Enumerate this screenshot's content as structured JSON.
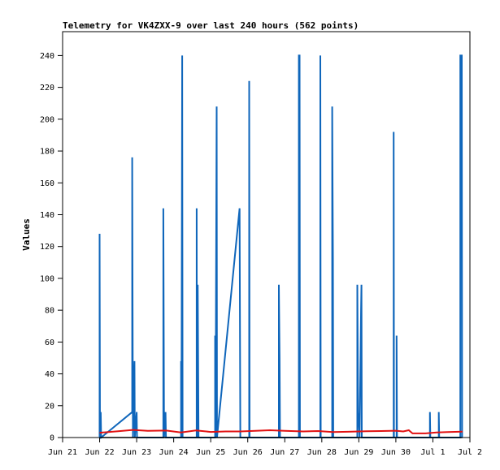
{
  "chart_data": {
    "type": "line",
    "title": "Telemetry for VK4ZXX-9 over last 240 hours (562 points)",
    "ylabel": "Values",
    "xlabel": "",
    "x_ticks": [
      "Jun 21",
      "Jun 22",
      "Jun 23",
      "Jun 24",
      "Jun 25",
      "Jun 26",
      "Jun 27",
      "Jun 28",
      "Jun 29",
      "Jun 30",
      "Jul 1",
      "Jul 2"
    ],
    "xlim": [
      0,
      11
    ],
    "y_ticks": [
      0,
      20,
      40,
      60,
      80,
      100,
      120,
      140,
      160,
      180,
      200,
      220,
      240
    ],
    "ylim": [
      0,
      255
    ],
    "grid": false,
    "legend": "none",
    "series": [
      {
        "color": "#0f66bb",
        "points": [
          [
            1.0,
            0
          ],
          [
            1.0,
            128
          ],
          [
            1.01,
            0
          ],
          [
            1.03,
            16
          ],
          [
            1.04,
            0
          ],
          [
            1.88,
            16
          ],
          [
            1.88,
            176
          ],
          [
            1.9,
            0
          ],
          [
            1.93,
            36
          ],
          [
            1.94,
            48
          ],
          [
            1.95,
            0
          ],
          [
            2.0,
            16
          ],
          [
            2.01,
            0
          ],
          [
            2.72,
            0
          ],
          [
            2.72,
            144
          ],
          [
            2.74,
            0
          ],
          [
            2.78,
            16
          ],
          [
            2.79,
            0
          ],
          [
            3.2,
            0
          ],
          [
            3.2,
            48
          ],
          [
            3.21,
            0
          ],
          [
            3.23,
            240
          ],
          [
            3.24,
            0
          ],
          [
            3.62,
            0
          ],
          [
            3.62,
            144
          ],
          [
            3.63,
            0
          ],
          [
            3.65,
            96
          ],
          [
            3.66,
            48
          ],
          [
            3.67,
            0
          ],
          [
            4.12,
            0
          ],
          [
            4.12,
            64
          ],
          [
            4.13,
            0
          ],
          [
            4.16,
            208
          ],
          [
            4.17,
            0
          ],
          [
            4.78,
            144
          ],
          [
            4.8,
            0
          ],
          [
            5.04,
            0
          ],
          [
            5.04,
            224
          ],
          [
            5.05,
            0
          ],
          [
            5.84,
            0
          ],
          [
            5.84,
            96
          ],
          [
            5.86,
            48
          ],
          [
            5.87,
            0
          ],
          [
            6.38,
            0
          ],
          [
            6.38,
            240
          ],
          [
            6.4,
            240
          ],
          [
            6.41,
            0
          ],
          [
            6.96,
            0
          ],
          [
            6.96,
            240
          ],
          [
            6.97,
            0
          ],
          [
            7.28,
            0
          ],
          [
            7.28,
            208
          ],
          [
            7.3,
            112
          ],
          [
            7.31,
            0
          ],
          [
            7.96,
            0
          ],
          [
            7.96,
            96
          ],
          [
            7.98,
            16
          ],
          [
            8.02,
            0
          ],
          [
            8.06,
            80
          ],
          [
            8.07,
            96
          ],
          [
            8.08,
            0
          ],
          [
            8.94,
            0
          ],
          [
            8.94,
            192
          ],
          [
            8.95,
            0
          ],
          [
            9.02,
            0
          ],
          [
            9.02,
            64
          ],
          [
            9.03,
            0
          ],
          [
            9.92,
            0
          ],
          [
            9.92,
            16
          ],
          [
            9.93,
            0
          ],
          [
            10.16,
            0
          ],
          [
            10.16,
            16
          ],
          [
            10.17,
            0
          ],
          [
            10.74,
            0
          ],
          [
            10.74,
            240
          ],
          [
            10.78,
            240
          ],
          [
            10.79,
            0
          ]
        ]
      },
      {
        "color": "#e11111",
        "points": [
          [
            1.0,
            3
          ],
          [
            1.5,
            4
          ],
          [
            1.9,
            4.8
          ],
          [
            2.3,
            4.2
          ],
          [
            2.8,
            4.4
          ],
          [
            3.2,
            3.2
          ],
          [
            3.6,
            4.5
          ],
          [
            4.0,
            3.5
          ],
          [
            4.4,
            3.8
          ],
          [
            4.8,
            3.8
          ],
          [
            5.2,
            4.2
          ],
          [
            5.6,
            4.6
          ],
          [
            6.0,
            4.2
          ],
          [
            6.5,
            3.8
          ],
          [
            6.9,
            4.1
          ],
          [
            7.3,
            3.4
          ],
          [
            7.7,
            3.6
          ],
          [
            8.2,
            4.0
          ],
          [
            8.6,
            4.1
          ],
          [
            9.0,
            4.3
          ],
          [
            9.2,
            3.8
          ],
          [
            9.35,
            4.6
          ],
          [
            9.45,
            2.6
          ],
          [
            9.8,
            2.6
          ],
          [
            10.1,
            3.2
          ],
          [
            10.4,
            3.4
          ],
          [
            10.8,
            3.7
          ]
        ]
      },
      {
        "color": "#000000",
        "points": [
          [
            1.0,
            0
          ],
          [
            10.8,
            0
          ]
        ]
      }
    ]
  }
}
